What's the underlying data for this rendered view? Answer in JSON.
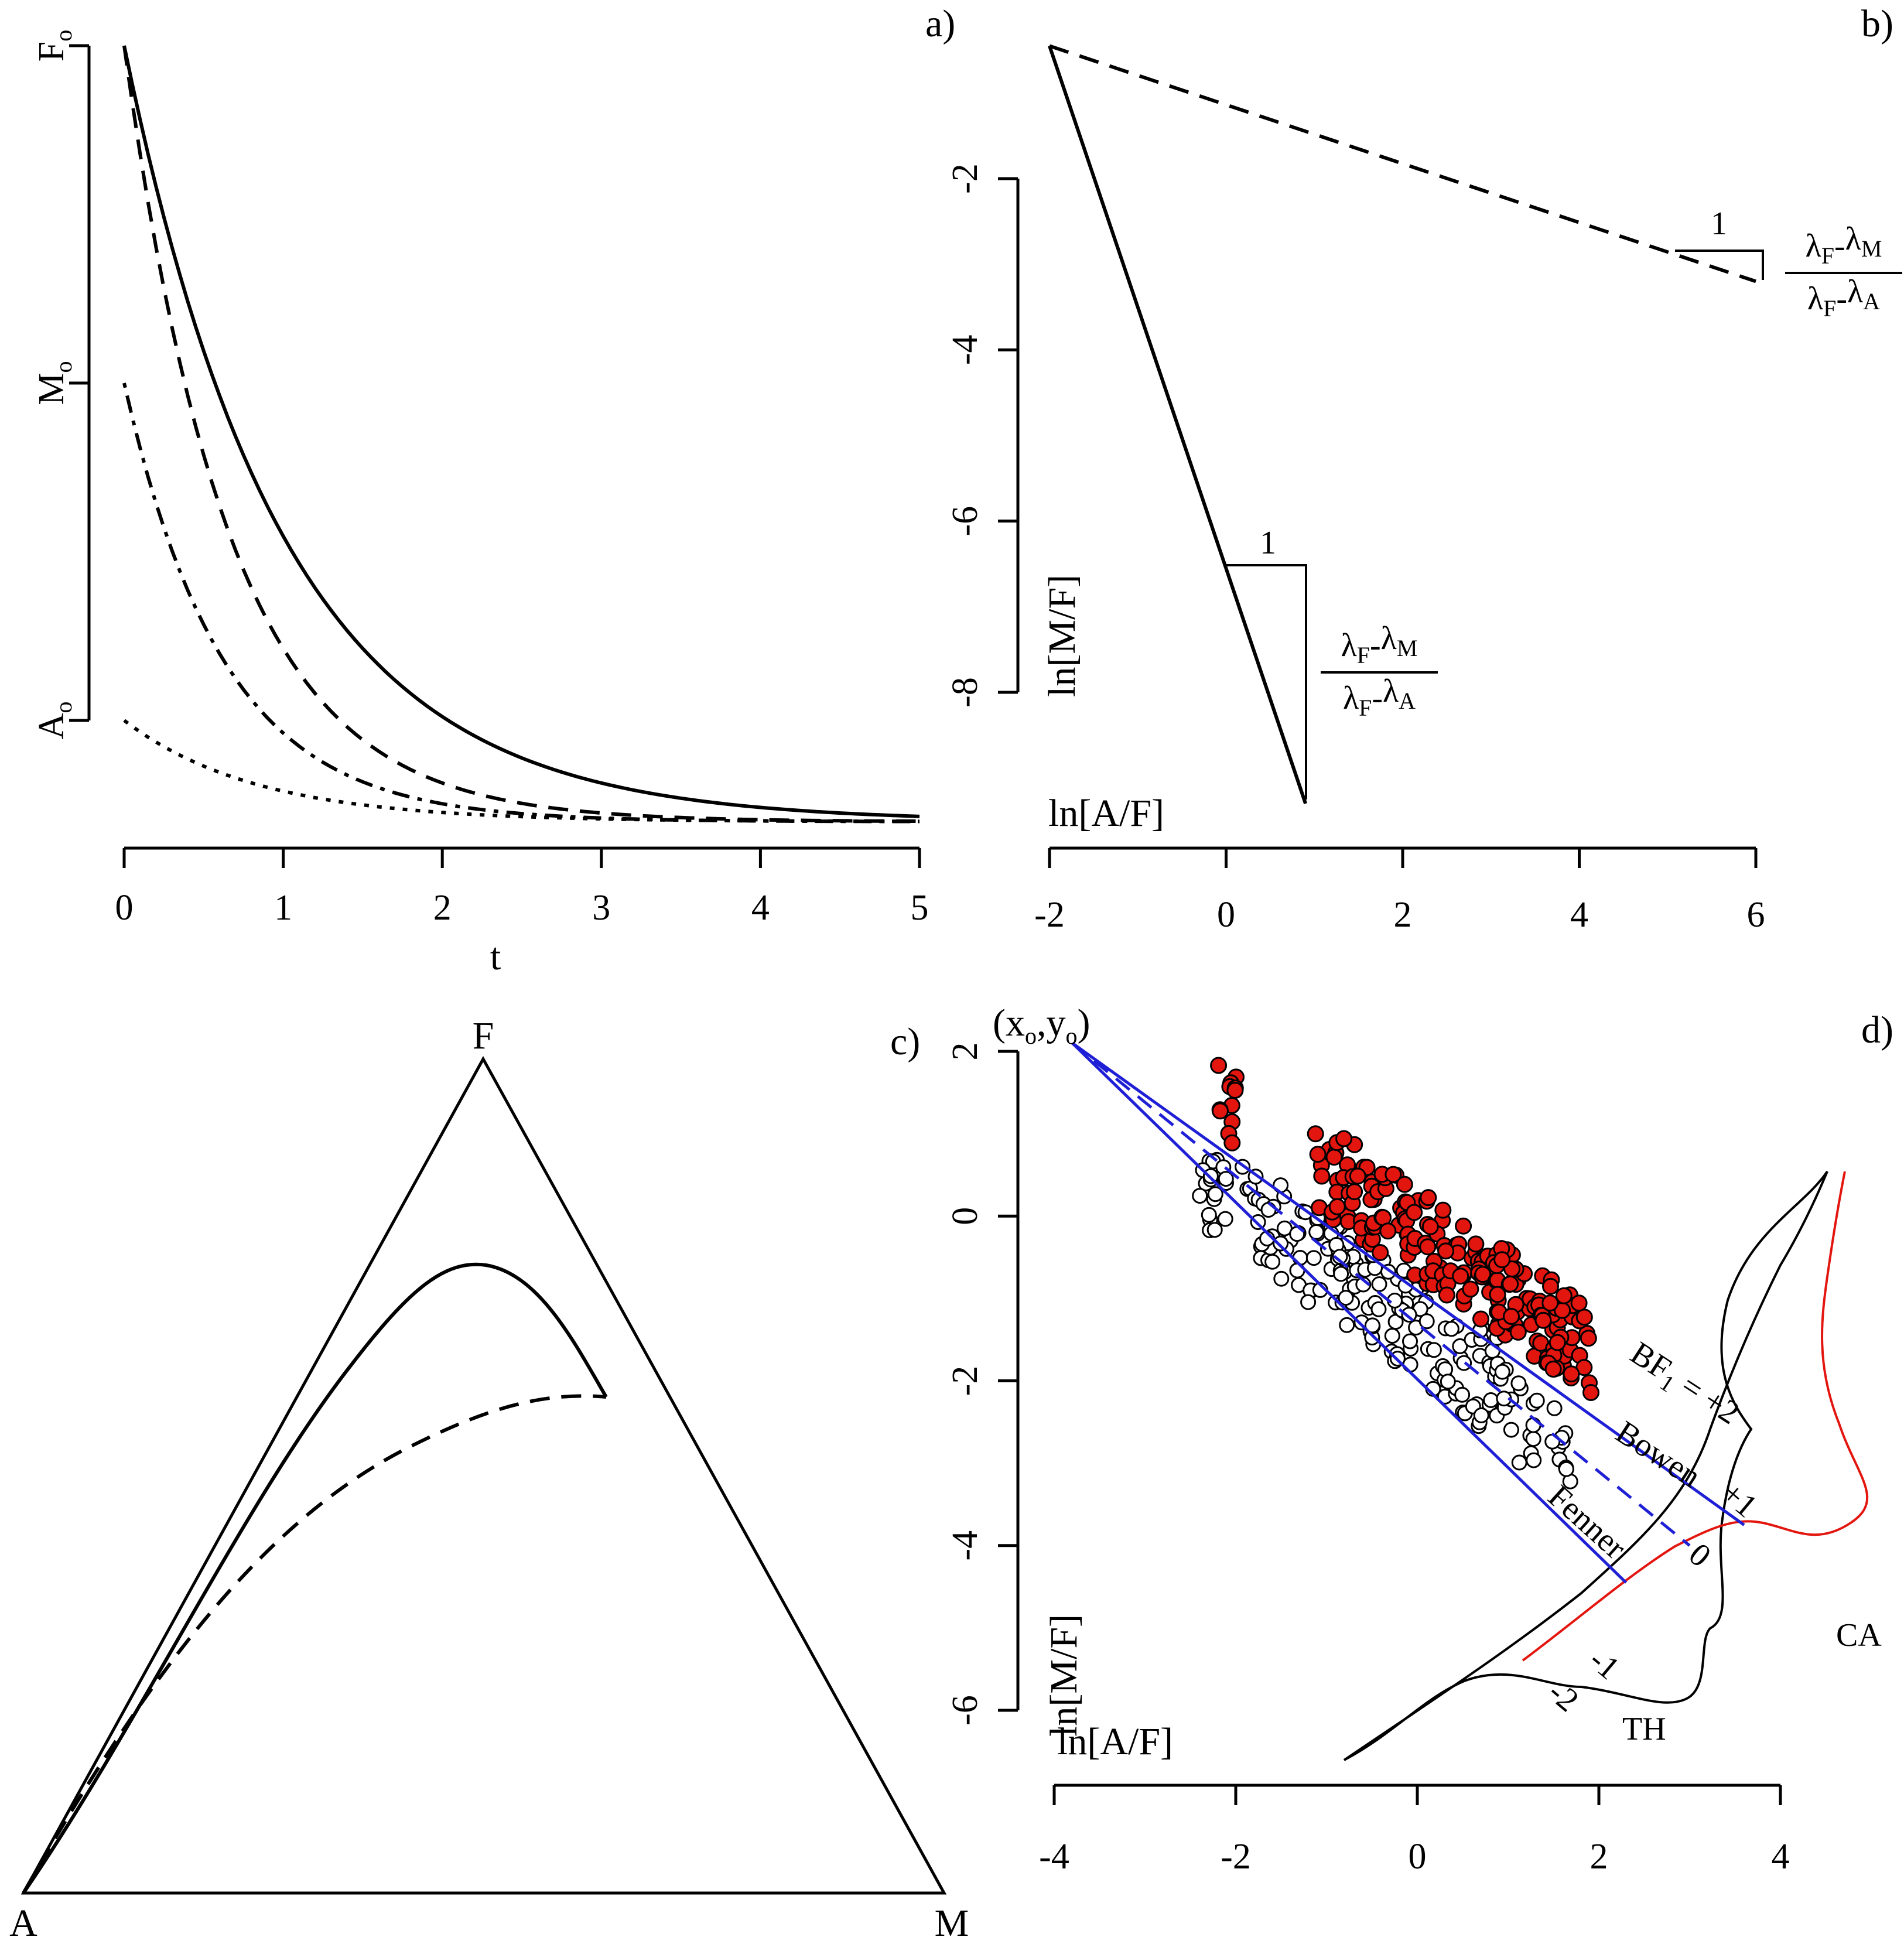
{
  "colors": {
    "fg": "#000000",
    "blue": "#1f1fd6",
    "red": "#e3160f",
    "white": "#ffffff"
  },
  "panels": [
    {
      "id": "a",
      "label": "a)",
      "chart_data": {
        "type": "line",
        "xlabel": "t",
        "xlim": [
          0,
          5
        ],
        "x_ticks": [
          "0",
          "1",
          "2",
          "3",
          "4",
          "5"
        ],
        "y_ticks": [
          {
            "main": "F",
            "sub": "o",
            "value": 1.0
          },
          {
            "main": "M",
            "sub": "o",
            "value": 0.6
          },
          {
            "main": "A",
            "sub": "o",
            "value": 0.2
          }
        ],
        "series": [
          {
            "style": "solid",
            "y0": 1.0,
            "decay": 1.0
          },
          {
            "style": "dashed",
            "y0": 1.0,
            "decay": 1.5
          },
          {
            "style": "dotdash",
            "y0": 0.6,
            "decay": 1.6
          },
          {
            "style": "dotted",
            "y0": 0.2,
            "decay": 1.2
          }
        ],
        "asymptote": 0.08
      }
    },
    {
      "id": "b",
      "label": "b)",
      "chart_data": {
        "type": "line",
        "xlabel": "ln[A/F]",
        "ylabel": "ln[M/F]",
        "xlim": [
          -2,
          6
        ],
        "ylim": [
          -8,
          -2
        ],
        "x_ticks": [
          "-2",
          "0",
          "2",
          "4",
          "6"
        ],
        "y_ticks": [
          "-2",
          "-4",
          "-6",
          "-8"
        ],
        "series": [
          {
            "style": "solid",
            "x": [
              -2.0,
              0.9
            ],
            "y": [
              -0.45,
              -9.3
            ]
          },
          {
            "style": "dashed",
            "x": [
              -2.0,
              6.0
            ],
            "y": [
              -0.45,
              -3.2
            ]
          }
        ],
        "slope_labels": {
          "run": "1",
          "numerator": {
            "a": "λ",
            "a_sub": "F",
            "op": "-",
            "b": "λ",
            "b_sub": "M"
          },
          "denominator": {
            "a": "λ",
            "a_sub": "F",
            "op": "-",
            "b": "λ",
            "b_sub": "A"
          }
        }
      }
    },
    {
      "id": "c",
      "label": "c)",
      "chart_data": {
        "type": "ternary",
        "vertices": [
          "F",
          "A",
          "M"
        ],
        "series": [
          {
            "style": "solid",
            "name": ""
          },
          {
            "style": "dashed",
            "name": ""
          }
        ]
      }
    },
    {
      "id": "d",
      "label": "d)",
      "chart_data": {
        "type": "scatter",
        "xlabel": "ln[A/F]",
        "ylabel": "ln[M/F]",
        "xlim": [
          -4,
          4
        ],
        "ylim": [
          -6,
          2
        ],
        "x_ticks": [
          "-4",
          "-2",
          "0",
          "2",
          "4"
        ],
        "y_ticks": [
          "2",
          "0",
          "-2",
          "-4",
          "-6"
        ],
        "origin_label": {
          "text": "(x",
          "sub1": "o",
          "mid": ",y",
          "sub2": "o",
          "end": ")"
        },
        "origin": [
          -3.8,
          2.1
        ],
        "rays": [
          {
            "name": "Bowen",
            "style": "solid",
            "end": [
              3.6,
              -3.75
            ]
          },
          {
            "name": "",
            "style": "dashed",
            "end": [
              3.0,
              -4.0
            ]
          },
          {
            "name": "Fenner",
            "style": "solid",
            "end": [
              2.3,
              -4.45
            ]
          }
        ],
        "bf_labels": [
          "BF",
          "1",
          " = +2",
          "+1",
          "0",
          "-1",
          "-2"
        ],
        "series_labels": {
          "th": "TH",
          "ca": "CA"
        },
        "white_points_x": [
          -1.8,
          -1.6,
          -1.4,
          -1.2,
          -1.0,
          -0.8,
          -0.6,
          -0.4,
          -0.2,
          0.0,
          0.2,
          0.4,
          0.6,
          0.8,
          1.0,
          1.2,
          -2.3,
          -2.2,
          -0.9,
          -0.2,
          1.6
        ],
        "red_points_x": [
          -1.0,
          -0.8,
          -0.6,
          -0.4,
          -0.2,
          0.0,
          0.2,
          0.4,
          0.6,
          0.8,
          1.0,
          1.2,
          1.4,
          1.6,
          1.8,
          -2.1,
          1.0,
          1.5
        ]
      }
    }
  ]
}
